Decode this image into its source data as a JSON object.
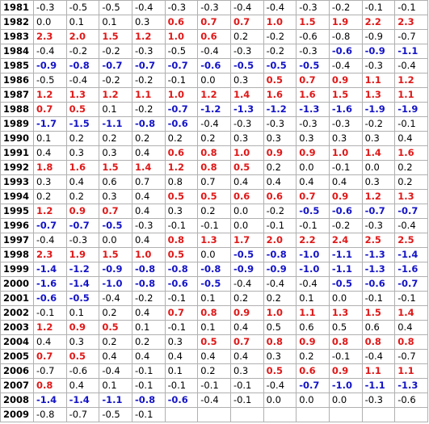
{
  "palette": {
    "warm": "#e01818",
    "cold": "#1414c8",
    "neutral": "#000000"
  },
  "table": {
    "rows": [
      {
        "year": "1981",
        "values": [
          "-0.3",
          "-0.5",
          "-0.5",
          "-0.4",
          "-0.3",
          "-0.3",
          "-0.4",
          "-0.4",
          "-0.3",
          "-0.2",
          "-0.1",
          "-0.1"
        ],
        "phase": [
          "neutral",
          "neutral",
          "neutral",
          "neutral",
          "neutral",
          "neutral",
          "neutral",
          "neutral",
          "neutral",
          "neutral",
          "neutral",
          "neutral"
        ]
      },
      {
        "year": "1982",
        "values": [
          "0.0",
          "0.1",
          "0.1",
          "0.3",
          "0.6",
          "0.7",
          "0.7",
          "1.0",
          "1.5",
          "1.9",
          "2.2",
          "2.3"
        ],
        "phase": [
          "neutral",
          "neutral",
          "neutral",
          "neutral",
          "warm",
          "warm",
          "warm",
          "warm",
          "warm",
          "warm",
          "warm",
          "warm"
        ]
      },
      {
        "year": "1983",
        "values": [
          "2.3",
          "2.0",
          "1.5",
          "1.2",
          "1.0",
          "0.6",
          "0.2",
          "-0.2",
          "-0.6",
          "-0.8",
          "-0.9",
          "-0.7"
        ],
        "phase": [
          "warm",
          "warm",
          "warm",
          "warm",
          "warm",
          "warm",
          "neutral",
          "neutral",
          "neutral",
          "neutral",
          "neutral",
          "neutral"
        ]
      },
      {
        "year": "1984",
        "values": [
          "-0.4",
          "-0.2",
          "-0.2",
          "-0.3",
          "-0.5",
          "-0.4",
          "-0.3",
          "-0.2",
          "-0.3",
          "-0.6",
          "-0.9",
          "-1.1"
        ],
        "phase": [
          "neutral",
          "neutral",
          "neutral",
          "neutral",
          "neutral",
          "neutral",
          "neutral",
          "neutral",
          "neutral",
          "cold",
          "cold",
          "cold"
        ]
      },
      {
        "year": "1985",
        "values": [
          "-0.9",
          "-0.8",
          "-0.7",
          "-0.7",
          "-0.7",
          "-0.6",
          "-0.5",
          "-0.5",
          "-0.5",
          "-0.4",
          "-0.3",
          "-0.4"
        ],
        "phase": [
          "cold",
          "cold",
          "cold",
          "cold",
          "cold",
          "cold",
          "cold",
          "cold",
          "cold",
          "neutral",
          "neutral",
          "neutral"
        ]
      },
      {
        "year": "1986",
        "values": [
          "-0.5",
          "-0.4",
          "-0.2",
          "-0.2",
          "-0.1",
          "0.0",
          "0.3",
          "0.5",
          "0.7",
          "0.9",
          "1.1",
          "1.2"
        ],
        "phase": [
          "neutral",
          "neutral",
          "neutral",
          "neutral",
          "neutral",
          "neutral",
          "neutral",
          "warm",
          "warm",
          "warm",
          "warm",
          "warm"
        ]
      },
      {
        "year": "1987",
        "values": [
          "1.2",
          "1.3",
          "1.2",
          "1.1",
          "1.0",
          "1.2",
          "1.4",
          "1.6",
          "1.6",
          "1.5",
          "1.3",
          "1.1"
        ],
        "phase": [
          "warm",
          "warm",
          "warm",
          "warm",
          "warm",
          "warm",
          "warm",
          "warm",
          "warm",
          "warm",
          "warm",
          "warm"
        ]
      },
      {
        "year": "1988",
        "values": [
          "0.7",
          "0.5",
          "0.1",
          "-0.2",
          "-0.7",
          "-1.2",
          "-1.3",
          "-1.2",
          "-1.3",
          "-1.6",
          "-1.9",
          "-1.9"
        ],
        "phase": [
          "warm",
          "warm",
          "neutral",
          "neutral",
          "cold",
          "cold",
          "cold",
          "cold",
          "cold",
          "cold",
          "cold",
          "cold"
        ]
      },
      {
        "year": "1989",
        "values": [
          "-1.7",
          "-1.5",
          "-1.1",
          "-0.8",
          "-0.6",
          "-0.4",
          "-0.3",
          "-0.3",
          "-0.3",
          "-0.3",
          "-0.2",
          "-0.1"
        ],
        "phase": [
          "cold",
          "cold",
          "cold",
          "cold",
          "cold",
          "neutral",
          "neutral",
          "neutral",
          "neutral",
          "neutral",
          "neutral",
          "neutral"
        ]
      },
      {
        "year": "1990",
        "values": [
          "0.1",
          "0.2",
          "0.2",
          "0.2",
          "0.2",
          "0.2",
          "0.3",
          "0.3",
          "0.3",
          "0.3",
          "0.3",
          "0.4"
        ],
        "phase": [
          "neutral",
          "neutral",
          "neutral",
          "neutral",
          "neutral",
          "neutral",
          "neutral",
          "neutral",
          "neutral",
          "neutral",
          "neutral",
          "neutral"
        ]
      },
      {
        "year": "1991",
        "values": [
          "0.4",
          "0.3",
          "0.3",
          "0.4",
          "0.6",
          "0.8",
          "1.0",
          "0.9",
          "0.9",
          "1.0",
          "1.4",
          "1.6"
        ],
        "phase": [
          "neutral",
          "neutral",
          "neutral",
          "neutral",
          "warm",
          "warm",
          "warm",
          "warm",
          "warm",
          "warm",
          "warm",
          "warm"
        ]
      },
      {
        "year": "1992",
        "values": [
          "1.8",
          "1.6",
          "1.5",
          "1.4",
          "1.2",
          "0.8",
          "0.5",
          "0.2",
          "0.0",
          "-0.1",
          "0.0",
          "0.2"
        ],
        "phase": [
          "warm",
          "warm",
          "warm",
          "warm",
          "warm",
          "warm",
          "warm",
          "neutral",
          "neutral",
          "neutral",
          "neutral",
          "neutral"
        ]
      },
      {
        "year": "1993",
        "values": [
          "0.3",
          "0.4",
          "0.6",
          "0.7",
          "0.8",
          "0.7",
          "0.4",
          "0.4",
          "0.4",
          "0.4",
          "0.3",
          "0.2"
        ],
        "phase": [
          "neutral",
          "neutral",
          "neutral",
          "neutral",
          "neutral",
          "neutral",
          "neutral",
          "neutral",
          "neutral",
          "neutral",
          "neutral",
          "neutral"
        ]
      },
      {
        "year": "1994",
        "values": [
          "0.2",
          "0.2",
          "0.3",
          "0.4",
          "0.5",
          "0.5",
          "0.6",
          "0.6",
          "0.7",
          "0.9",
          "1.2",
          "1.3"
        ],
        "phase": [
          "neutral",
          "neutral",
          "neutral",
          "neutral",
          "warm",
          "warm",
          "warm",
          "warm",
          "warm",
          "warm",
          "warm",
          "warm"
        ]
      },
      {
        "year": "1995",
        "values": [
          "1.2",
          "0.9",
          "0.7",
          "0.4",
          "0.3",
          "0.2",
          "0.0",
          "-0.2",
          "-0.5",
          "-0.6",
          "-0.7",
          "-0.7"
        ],
        "phase": [
          "warm",
          "warm",
          "warm",
          "neutral",
          "neutral",
          "neutral",
          "neutral",
          "neutral",
          "cold",
          "cold",
          "cold",
          "cold"
        ]
      },
      {
        "year": "1996",
        "values": [
          "-0.7",
          "-0.7",
          "-0.5",
          "-0.3",
          "-0.1",
          "-0.1",
          "0.0",
          "-0.1",
          "-0.1",
          "-0.2",
          "-0.3",
          "-0.4"
        ],
        "phase": [
          "cold",
          "cold",
          "cold",
          "neutral",
          "neutral",
          "neutral",
          "neutral",
          "neutral",
          "neutral",
          "neutral",
          "neutral",
          "neutral"
        ]
      },
      {
        "year": "1997",
        "values": [
          "-0.4",
          "-0.3",
          "0.0",
          "0.4",
          "0.8",
          "1.3",
          "1.7",
          "2.0",
          "2.2",
          "2.4",
          "2.5",
          "2.5"
        ],
        "phase": [
          "neutral",
          "neutral",
          "neutral",
          "neutral",
          "warm",
          "warm",
          "warm",
          "warm",
          "warm",
          "warm",
          "warm",
          "warm"
        ]
      },
      {
        "year": "1998",
        "values": [
          "2.3",
          "1.9",
          "1.5",
          "1.0",
          "0.5",
          "0.0",
          "-0.5",
          "-0.8",
          "-1.0",
          "-1.1",
          "-1.3",
          "-1.4"
        ],
        "phase": [
          "warm",
          "warm",
          "warm",
          "warm",
          "warm",
          "neutral",
          "cold",
          "cold",
          "cold",
          "cold",
          "cold",
          "cold"
        ]
      },
      {
        "year": "1999",
        "values": [
          "-1.4",
          "-1.2",
          "-0.9",
          "-0.8",
          "-0.8",
          "-0.8",
          "-0.9",
          "-0.9",
          "-1.0",
          "-1.1",
          "-1.3",
          "-1.6"
        ],
        "phase": [
          "cold",
          "cold",
          "cold",
          "cold",
          "cold",
          "cold",
          "cold",
          "cold",
          "cold",
          "cold",
          "cold",
          "cold"
        ]
      },
      {
        "year": "2000",
        "values": [
          "-1.6",
          "-1.4",
          "-1.0",
          "-0.8",
          "-0.6",
          "-0.5",
          "-0.4",
          "-0.4",
          "-0.4",
          "-0.5",
          "-0.6",
          "-0.7"
        ],
        "phase": [
          "cold",
          "cold",
          "cold",
          "cold",
          "cold",
          "cold",
          "neutral",
          "neutral",
          "neutral",
          "cold",
          "cold",
          "cold"
        ]
      },
      {
        "year": "2001",
        "values": [
          "-0.6",
          "-0.5",
          "-0.4",
          "-0.2",
          "-0.1",
          "0.1",
          "0.2",
          "0.2",
          "0.1",
          "0.0",
          "-0.1",
          "-0.1"
        ],
        "phase": [
          "cold",
          "cold",
          "neutral",
          "neutral",
          "neutral",
          "neutral",
          "neutral",
          "neutral",
          "neutral",
          "neutral",
          "neutral",
          "neutral"
        ]
      },
      {
        "year": "2002",
        "values": [
          "-0.1",
          "0.1",
          "0.2",
          "0.4",
          "0.7",
          "0.8",
          "0.9",
          "1.0",
          "1.1",
          "1.3",
          "1.5",
          "1.4"
        ],
        "phase": [
          "neutral",
          "neutral",
          "neutral",
          "neutral",
          "warm",
          "warm",
          "warm",
          "warm",
          "warm",
          "warm",
          "warm",
          "warm"
        ]
      },
      {
        "year": "2003",
        "values": [
          "1.2",
          "0.9",
          "0.5",
          "0.1",
          "-0.1",
          "0.1",
          "0.4",
          "0.5",
          "0.6",
          "0.5",
          "0.6",
          "0.4"
        ],
        "phase": [
          "warm",
          "warm",
          "warm",
          "neutral",
          "neutral",
          "neutral",
          "neutral",
          "neutral",
          "neutral",
          "neutral",
          "neutral",
          "neutral"
        ]
      },
      {
        "year": "2004",
        "values": [
          "0.4",
          "0.3",
          "0.2",
          "0.2",
          "0.3",
          "0.5",
          "0.7",
          "0.8",
          "0.9",
          "0.8",
          "0.8",
          "0.8"
        ],
        "phase": [
          "neutral",
          "neutral",
          "neutral",
          "neutral",
          "neutral",
          "warm",
          "warm",
          "warm",
          "warm",
          "warm",
          "warm",
          "warm"
        ]
      },
      {
        "year": "2005",
        "values": [
          "0.7",
          "0.5",
          "0.4",
          "0.4",
          "0.4",
          "0.4",
          "0.4",
          "0.3",
          "0.2",
          "-0.1",
          "-0.4",
          "-0.7"
        ],
        "phase": [
          "warm",
          "warm",
          "neutral",
          "neutral",
          "neutral",
          "neutral",
          "neutral",
          "neutral",
          "neutral",
          "neutral",
          "neutral",
          "neutral"
        ]
      },
      {
        "year": "2006",
        "values": [
          "-0.7",
          "-0.6",
          "-0.4",
          "-0.1",
          "0.1",
          "0.2",
          "0.3",
          "0.5",
          "0.6",
          "0.9",
          "1.1",
          "1.1"
        ],
        "phase": [
          "neutral",
          "neutral",
          "neutral",
          "neutral",
          "neutral",
          "neutral",
          "neutral",
          "warm",
          "warm",
          "warm",
          "warm",
          "warm"
        ]
      },
      {
        "year": "2007",
        "values": [
          "0.8",
          "0.4",
          "0.1",
          "-0.1",
          "-0.1",
          "-0.1",
          "-0.1",
          "-0.4",
          "-0.7",
          "-1.0",
          "-1.1",
          "-1.3"
        ],
        "phase": [
          "warm",
          "neutral",
          "neutral",
          "neutral",
          "neutral",
          "neutral",
          "neutral",
          "neutral",
          "cold",
          "cold",
          "cold",
          "cold"
        ]
      },
      {
        "year": "2008",
        "values": [
          "-1.4",
          "-1.4",
          "-1.1",
          "-0.8",
          "-0.6",
          "-0.4",
          "-0.1",
          "0.0",
          "0.0",
          "0.0",
          "-0.3",
          "-0.6"
        ],
        "phase": [
          "cold",
          "cold",
          "cold",
          "cold",
          "cold",
          "neutral",
          "neutral",
          "neutral",
          "neutral",
          "neutral",
          "neutral",
          "neutral"
        ]
      },
      {
        "year": "2009",
        "values": [
          "-0.8",
          "-0.7",
          "-0.5",
          "-0.1"
        ],
        "phase": [
          "neutral",
          "neutral",
          "neutral",
          "neutral"
        ]
      }
    ]
  }
}
